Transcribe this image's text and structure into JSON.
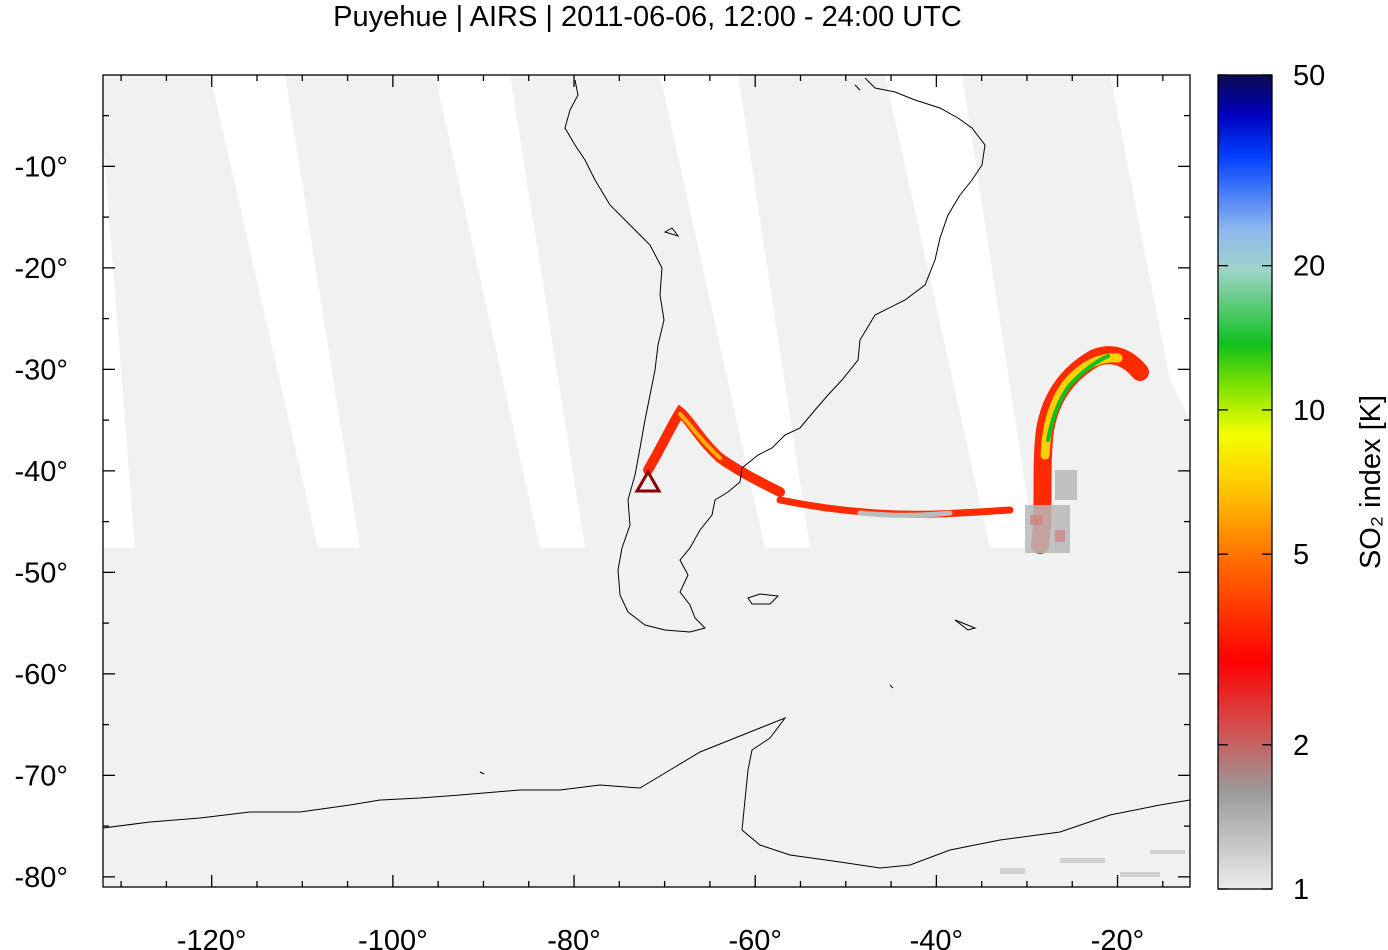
{
  "title": "Puyehue | AIRS | 2011-06-06, 12:00 - 24:00 UTC",
  "map": {
    "lon_range": [
      -132,
      -12
    ],
    "lat_range": [
      -81,
      -1
    ],
    "x_ticks": [
      "-120°",
      "-100°",
      "-80°",
      "-60°",
      "-40°",
      "-20°"
    ],
    "x_tick_values": [
      -120,
      -100,
      -80,
      -60,
      -40,
      -20
    ],
    "y_ticks": [
      "-10°",
      "-20°",
      "-30°",
      "-40°",
      "-50°",
      "-60°",
      "-70°",
      "-80°"
    ],
    "y_tick_values": [
      -10,
      -20,
      -30,
      -40,
      -50,
      -60,
      -70,
      -80
    ],
    "background_color": "#f1f1f1",
    "coastline_color": "#000000",
    "volcano": {
      "name": "Puyehue",
      "marker": "triangle-icon",
      "lon": -72.1,
      "lat": -40.6,
      "color": "#8b0000"
    }
  },
  "colorbar": {
    "label": "SO₂ index [K]",
    "scale": "log",
    "range": [
      1,
      50
    ],
    "tick_labels": [
      "50",
      "20",
      "10",
      "5",
      "2",
      "1"
    ],
    "tick_values": [
      50,
      20,
      10,
      5,
      2,
      1
    ],
    "colors": [
      "#ececec",
      "#9a9a9a",
      "#c86060",
      "#ff0000",
      "#ff6a00",
      "#ffcf00",
      "#f2ff00",
      "#7be000",
      "#10c020",
      "#9ed4c8",
      "#8fb8ee",
      "#0040ff",
      "#0000c0",
      "#0a0a50"
    ]
  }
}
